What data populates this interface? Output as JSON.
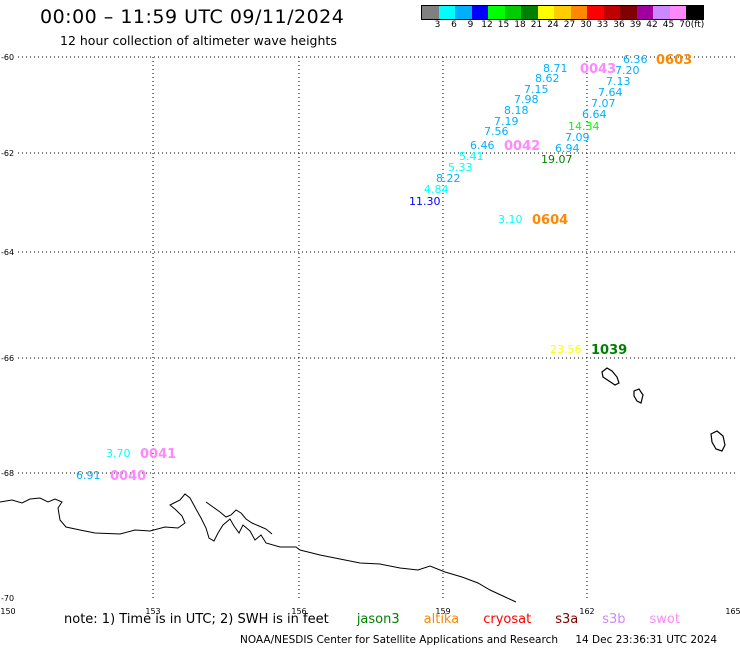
{
  "header": {
    "title": "00:00 – 11:59 UTC 09/11/2024",
    "subtitle": "12 hour collection of altimeter wave heights"
  },
  "colorbar": {
    "colors": [
      "#808080",
      "#00ffff",
      "#00b0ff",
      "#0000ff",
      "#00ff00",
      "#00cc00",
      "#008000",
      "#ffff00",
      "#ffcc00",
      "#ff8800",
      "#ff0000",
      "#c00000",
      "#800000",
      "#a000a0",
      "#cc88ff",
      "#ff88ff",
      "#000000"
    ],
    "labels": [
      "3",
      "6",
      "9",
      "12",
      "15",
      "18",
      "21",
      "24",
      "27",
      "30",
      "33",
      "36",
      "39",
      "42",
      "45",
      "70"
    ],
    "unit": "(ft)"
  },
  "axes": {
    "x_ticks": [
      "150",
      "153",
      "156",
      "159",
      "162",
      "165"
    ],
    "y_ticks": [
      "-60",
      "-62",
      "-64",
      "-66",
      "-68",
      "-70"
    ]
  },
  "observations": [
    {
      "text": "6.36",
      "color": "#00b0ff"
    },
    {
      "text": "0603",
      "color": "#ff8800"
    },
    {
      "text": "8.71",
      "color": "#00b0ff"
    },
    {
      "text": "0043",
      "color": "#ff88ff"
    },
    {
      "text": "7.20",
      "color": "#00b0ff"
    },
    {
      "text": "8.62",
      "color": "#00b0ff"
    },
    {
      "text": "7.13",
      "color": "#00b0ff"
    },
    {
      "text": "7.15",
      "color": "#00b0ff"
    },
    {
      "text": "7.64",
      "color": "#00b0ff"
    },
    {
      "text": "7.98",
      "color": "#00b0ff"
    },
    {
      "text": "7.07",
      "color": "#00b0ff"
    },
    {
      "text": "8.18",
      "color": "#00b0ff"
    },
    {
      "text": "6.64",
      "color": "#00b0ff"
    },
    {
      "text": "7.19",
      "color": "#00b0ff"
    },
    {
      "text": "14.34",
      "color": "#00ff00"
    },
    {
      "text": "7.56",
      "color": "#00b0ff"
    },
    {
      "text": "7.09",
      "color": "#00b0ff"
    },
    {
      "text": "6.46",
      "color": "#00b0ff"
    },
    {
      "text": "0042",
      "color": "#ff88ff"
    },
    {
      "text": "6.94",
      "color": "#00b0ff"
    },
    {
      "text": "5.41",
      "color": "#00ffff"
    },
    {
      "text": "19.07",
      "color": "#008000"
    },
    {
      "text": "5.33",
      "color": "#00ffff"
    },
    {
      "text": "8.22",
      "color": "#00b0ff"
    },
    {
      "text": "4.84",
      "color": "#00ffff"
    },
    {
      "text": "11.30",
      "color": "#0000ff"
    },
    {
      "text": "3.10",
      "color": "#00ffff"
    },
    {
      "text": "0604",
      "color": "#ff8800"
    },
    {
      "text": "23.56",
      "color": "#ffff00"
    },
    {
      "text": "1039",
      "color": "#008000"
    },
    {
      "text": "3.70",
      "color": "#00ffff"
    },
    {
      "text": "0041",
      "color": "#ff88ff"
    },
    {
      "text": "6.91",
      "color": "#00b0ff"
    },
    {
      "text": "0040",
      "color": "#ff88ff"
    }
  ],
  "note": {
    "prefix": "note: 1) Time is in UTC; 2) SWH is in feet",
    "satellites": [
      {
        "name": "jason3",
        "color": "#008000"
      },
      {
        "name": "altika",
        "color": "#ff8800"
      },
      {
        "name": "cryosat",
        "color": "#ff0000"
      },
      {
        "name": "s3a",
        "color": "#800000"
      },
      {
        "name": "s3b",
        "color": "#cc88ff"
      },
      {
        "name": "swot",
        "color": "#ff88ff"
      }
    ]
  },
  "footer": {
    "credit": "NOAA/NESDIS Center for Satellite Applications and Research",
    "timestamp": "14 Dec 23:36:31 UTC 2024"
  }
}
